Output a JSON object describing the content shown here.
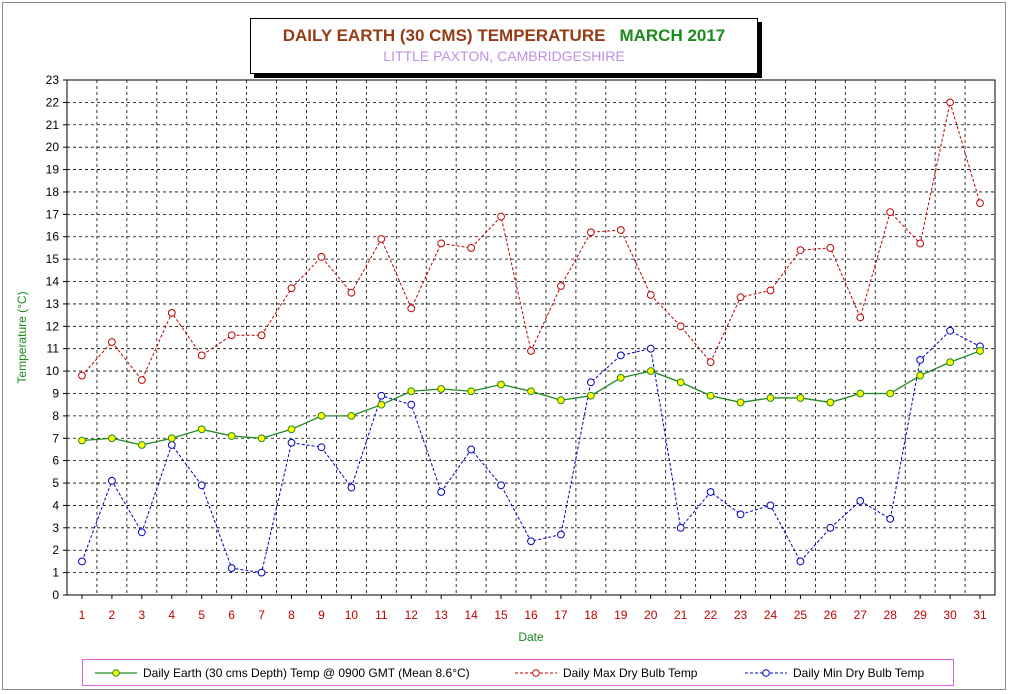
{
  "title": {
    "main": "DAILY EARTH (30 CMS) TEMPERATURE",
    "month": "MARCH 2017",
    "subtitle": "LITTLE PAXTON, CAMBRIDGESHIRE"
  },
  "colors": {
    "title_main": "#963c14",
    "title_month": "#1b8b1b",
    "subtitle": "#bf8fe6",
    "earth_line": "#1f8a1f",
    "earth_marker": "#ffff00",
    "max_line": "#c00000",
    "min_line": "#0000c0",
    "axis_label": "#1b8b1b",
    "tick_label_x": "#c00000",
    "legend_border": "#e060e0"
  },
  "chart_data": {
    "type": "line",
    "xlabel": "Date",
    "ylabel": "Temperature (°C)",
    "ylim": [
      0,
      23
    ],
    "yticks": [
      0,
      1,
      2,
      3,
      4,
      5,
      6,
      7,
      8,
      9,
      10,
      11,
      12,
      13,
      14,
      15,
      16,
      17,
      18,
      19,
      20,
      21,
      22,
      23
    ],
    "x": [
      1,
      2,
      3,
      4,
      5,
      6,
      7,
      8,
      9,
      10,
      11,
      12,
      13,
      14,
      15,
      16,
      17,
      18,
      19,
      20,
      21,
      22,
      23,
      24,
      25,
      26,
      27,
      28,
      29,
      30,
      31
    ],
    "grid": true,
    "legend_position": "bottom",
    "series": [
      {
        "name": "Daily Earth (30 cms Depth) Temp @ 0900 GMT (Mean 8.6°C)",
        "style": "solid",
        "marker": "filled-circle",
        "values": [
          6.9,
          7.0,
          6.7,
          7.0,
          7.4,
          7.1,
          7.0,
          7.4,
          8.0,
          8.0,
          8.5,
          9.1,
          9.2,
          9.1,
          9.4,
          9.1,
          8.7,
          8.9,
          9.7,
          10.0,
          9.5,
          8.9,
          8.6,
          8.8,
          8.8,
          8.6,
          9.0,
          9.0,
          9.8,
          10.4,
          10.9
        ]
      },
      {
        "name": "Daily Max Dry Bulb Temp",
        "style": "dashed",
        "marker": "open-circle",
        "values": [
          9.8,
          11.3,
          9.6,
          12.6,
          10.7,
          11.6,
          11.6,
          13.7,
          15.1,
          13.5,
          15.9,
          12.8,
          15.7,
          15.5,
          16.9,
          10.9,
          13.8,
          16.2,
          16.3,
          13.4,
          12.0,
          10.4,
          13.3,
          13.6,
          15.4,
          15.5,
          12.4,
          17.1,
          15.7,
          22.0,
          17.5
        ]
      },
      {
        "name": "Daily Min Dry Bulb Temp",
        "style": "dashed",
        "marker": "open-circle",
        "values": [
          1.5,
          5.1,
          2.8,
          6.7,
          4.9,
          1.2,
          1.0,
          6.8,
          6.6,
          4.8,
          8.9,
          8.5,
          4.6,
          6.5,
          4.9,
          2.4,
          2.7,
          9.5,
          10.7,
          11.0,
          3.0,
          4.6,
          3.6,
          4.0,
          1.5,
          3.0,
          4.2,
          3.4,
          10.5,
          11.8,
          11.1
        ]
      }
    ]
  }
}
